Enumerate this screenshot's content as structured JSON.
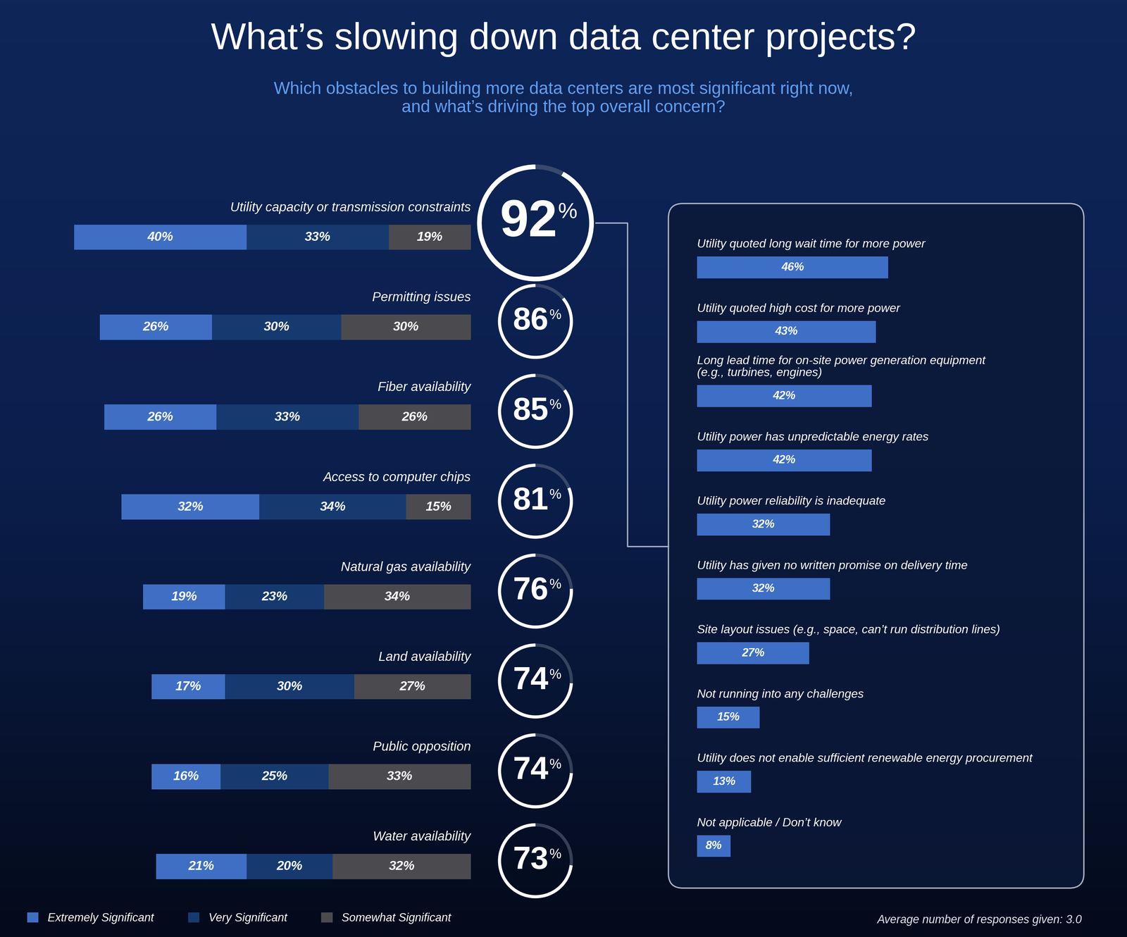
{
  "title": "What’s slowing down data center projects?",
  "subtitle": "Which obstacles to building more data centers are most significant right now,\nand what’s driving the top overall concern?",
  "note": "Average number of responses given: 3.0",
  "chart_data": [
    {
      "type": "bar",
      "orientation": "horizontal",
      "stacked": true,
      "data_labels": true,
      "tick_labels": false,
      "legend": "lower left",
      "categories": [
        "Utility capacity or transmission constraints",
        "Permitting issues",
        "Fiber availability",
        "Access to computer chips",
        "Natural gas availability",
        "Land availability",
        "Public opposition",
        "Water availability"
      ],
      "xlim": [
        100,
        0
      ],
      "series": [
        {
          "name": "Extremely Significant",
          "color": "#3f6fc4",
          "values": [
            40,
            26,
            26,
            32,
            19,
            17,
            16,
            21
          ],
          "value_labels": [
            "40%",
            "26%",
            "26%",
            "32%",
            "19%",
            "17%",
            "16%",
            "21%"
          ]
        },
        {
          "name": "Very Significant",
          "color": "#163a70",
          "values": [
            33,
            30,
            33,
            34,
            23,
            30,
            25,
            20
          ],
          "value_labels": [
            "33%",
            "30%",
            "33%",
            "34%",
            "23%",
            "30%",
            "25%",
            "20%"
          ]
        },
        {
          "name": "Somewhat Significant",
          "color": "#4b4b4f",
          "values": [
            19,
            30,
            26,
            15,
            34,
            27,
            33,
            32
          ],
          "value_labels": [
            "19%",
            "30%",
            "26%",
            "15%",
            "34%",
            "27%",
            "33%",
            "32%"
          ]
        }
      ],
      "totals": [
        92,
        86,
        85,
        81,
        76,
        74,
        74,
        73
      ],
      "total_labels": [
        "92%",
        "86%",
        "85%",
        "81%",
        "76%",
        "74%",
        "74%",
        "73%"
      ]
    },
    {
      "type": "bar",
      "orientation": "horizontal",
      "data_labels": true,
      "tick_labels": false,
      "color": "#3e6fc6",
      "xlim": [
        0,
        100
      ],
      "categories": [
        "Utility quoted long wait time for more power",
        "Utility quoted high cost for more power",
        "Long lead time for on-site power generation equipment\n(e.g., turbines, engines)",
        "Utility power has unpredictable energy rates",
        "Utility power reliability is inadequate",
        "Utility has given no written promise on delivery time",
        "Site layout issues (e.g., space, can’t run distribution lines)",
        "Not running into any challenges",
        "Utility does not enable sufficient renewable energy procurement",
        "Not applicable / Don’t know"
      ],
      "values": [
        46,
        43,
        42,
        42,
        32,
        32,
        27,
        15,
        13,
        8
      ],
      "value_labels": [
        "46%",
        "43%",
        "42%",
        "42%",
        "32%",
        "32%",
        "27%",
        "15%",
        "13%",
        "8%"
      ]
    }
  ]
}
